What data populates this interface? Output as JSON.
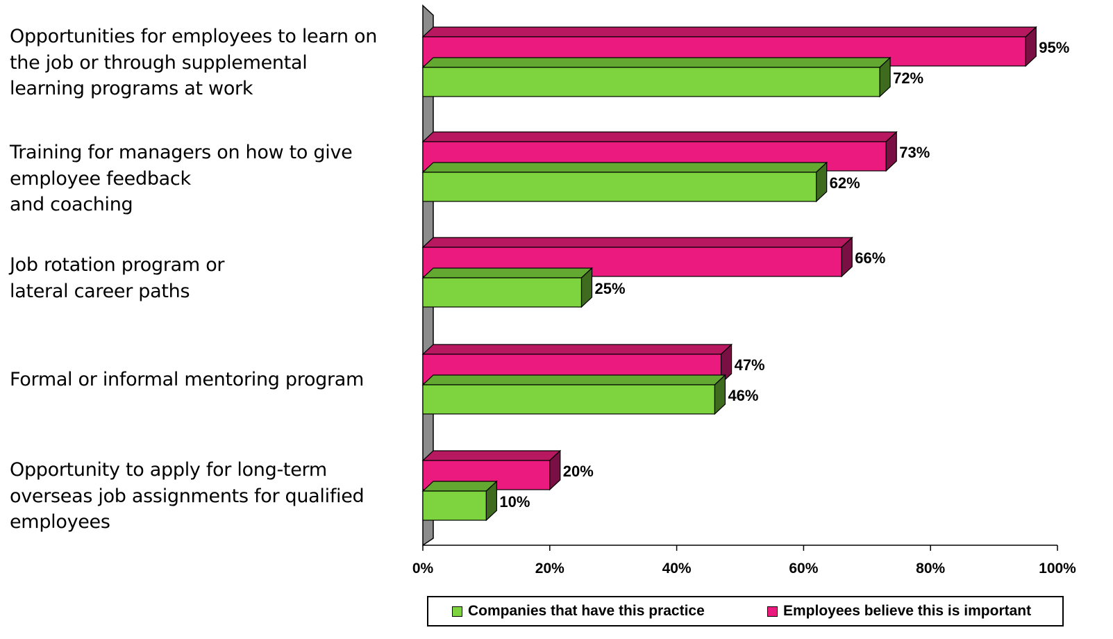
{
  "chart_data": {
    "type": "bar",
    "orientation": "horizontal",
    "categories": [
      [
        "Opportunities for employees to learn on",
        "the job or through supplemental",
        "learning programs at work"
      ],
      [
        "Training for managers on how to give",
        "employee feedback",
        "and coaching"
      ],
      [
        "Job rotation program or",
        "lateral career paths"
      ],
      [
        "Formal or informal mentoring program"
      ],
      [
        "Opportunity to apply for long-term",
        "overseas job assignments for qualified",
        "employees"
      ]
    ],
    "series": [
      {
        "name": "Employees believe this is important",
        "values": [
          95,
          73,
          66,
          47,
          20
        ],
        "labels": [
          "95%",
          "73%",
          "66%",
          "47%",
          "20%"
        ],
        "color": "#ea1a7f",
        "side_color": "#7a0f44",
        "top_color": "#b8185f"
      },
      {
        "name": "Companies that have this practice",
        "values": [
          72,
          62,
          25,
          46,
          10
        ],
        "labels": [
          "72%",
          "62%",
          "25%",
          "46%",
          "10%"
        ],
        "color": "#7ed43e",
        "side_color": "#3f6b1f",
        "top_color": "#63a830"
      }
    ],
    "xlim": [
      0,
      100
    ],
    "x_ticks": [
      "0%",
      "20%",
      "40%",
      "60%",
      "80%",
      "100%"
    ],
    "legend_position": "bottom",
    "legend_order": [
      1,
      0
    ],
    "grid": false,
    "effect": "3d"
  }
}
